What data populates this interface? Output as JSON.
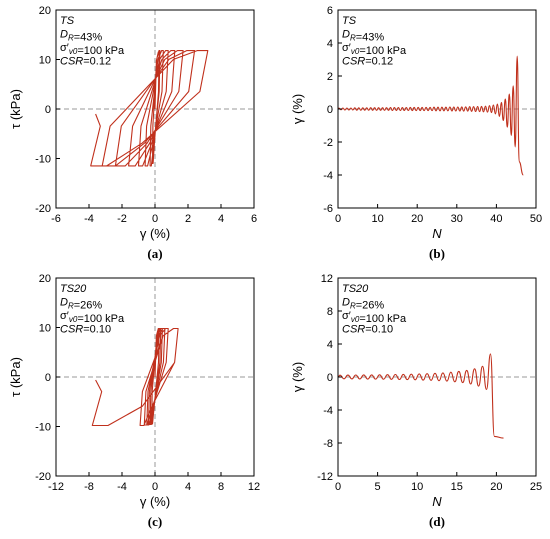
{
  "colors": {
    "series": "#c0301c",
    "reference": "#999999"
  },
  "chart_data": [
    {
      "id": "a",
      "type": "line",
      "panel_label": "(a)",
      "annotation": [
        "TS",
        "DR=43%",
        "σ'v0=100 kPa",
        "CSR=0.12"
      ],
      "xlabel": "γ (%)",
      "ylabel": "τ (kPa)",
      "xlim": [
        -6,
        6
      ],
      "ylim": [
        -20,
        20
      ],
      "xticks": [
        -6,
        -4,
        -2,
        0,
        2,
        4,
        6
      ],
      "yticks": [
        -20,
        -10,
        0,
        10,
        20
      ],
      "reference_lines": {
        "x": 0,
        "y": 0
      },
      "grid": false,
      "loops": [
        {
          "min": -0.15,
          "max": 0.25,
          "tmin": -11,
          "tmax": 11.5
        },
        {
          "min": -0.3,
          "max": 0.3,
          "tmin": -11.5,
          "tmax": 11.8
        },
        {
          "min": -0.6,
          "max": 0.5,
          "tmin": -11.5,
          "tmax": 11.8
        },
        {
          "min": -1.0,
          "max": 0.8,
          "tmin": -11.5,
          "tmax": 11.8
        },
        {
          "min": -1.6,
          "max": 1.2,
          "tmin": -11.5,
          "tmax": 11.8
        },
        {
          "min": -2.4,
          "max": 1.7,
          "tmin": -11.5,
          "tmax": 11.8
        },
        {
          "min": -3.2,
          "max": 2.4,
          "tmin": -11.5,
          "tmax": 11.8
        },
        {
          "min": -3.9,
          "max": 3.2,
          "tmin": -11.5,
          "tmax": 11.8
        }
      ],
      "end_point": [
        -3.6,
        -1.0
      ]
    },
    {
      "id": "b",
      "type": "line",
      "panel_label": "(b)",
      "annotation": [
        "TS",
        "DR=43%",
        "σ'v0=100 kPa",
        "CSR=0.12"
      ],
      "xlabel": "N",
      "ylabel": "γ (%)",
      "xlim": [
        0,
        50
      ],
      "ylim": [
        -6,
        6
      ],
      "xticks": [
        0,
        10,
        20,
        30,
        40,
        50
      ],
      "yticks": [
        -6,
        -4,
        -2,
        0,
        2,
        4,
        6
      ],
      "reference_lines": {
        "y": 0
      },
      "grid": false,
      "cycles": [
        {
          "n": 1,
          "max": 0.05,
          "min": -0.05
        },
        {
          "n": 2,
          "max": 0.06,
          "min": -0.06
        },
        {
          "n": 3,
          "max": 0.06,
          "min": -0.06
        },
        {
          "n": 4,
          "max": 0.06,
          "min": -0.06
        },
        {
          "n": 5,
          "max": 0.07,
          "min": -0.07
        },
        {
          "n": 6,
          "max": 0.07,
          "min": -0.07
        },
        {
          "n": 7,
          "max": 0.07,
          "min": -0.07
        },
        {
          "n": 8,
          "max": 0.07,
          "min": -0.07
        },
        {
          "n": 9,
          "max": 0.08,
          "min": -0.08
        },
        {
          "n": 10,
          "max": 0.08,
          "min": -0.08
        },
        {
          "n": 11,
          "max": 0.08,
          "min": -0.08
        },
        {
          "n": 12,
          "max": 0.08,
          "min": -0.08
        },
        {
          "n": 13,
          "max": 0.08,
          "min": -0.08
        },
        {
          "n": 14,
          "max": 0.09,
          "min": -0.09
        },
        {
          "n": 15,
          "max": 0.09,
          "min": -0.09
        },
        {
          "n": 16,
          "max": 0.09,
          "min": -0.09
        },
        {
          "n": 17,
          "max": 0.09,
          "min": -0.09
        },
        {
          "n": 18,
          "max": 0.09,
          "min": -0.09
        },
        {
          "n": 19,
          "max": 0.1,
          "min": -0.1
        },
        {
          "n": 20,
          "max": 0.1,
          "min": -0.1
        },
        {
          "n": 21,
          "max": 0.1,
          "min": -0.1
        },
        {
          "n": 22,
          "max": 0.1,
          "min": -0.1
        },
        {
          "n": 23,
          "max": 0.1,
          "min": -0.1
        },
        {
          "n": 24,
          "max": 0.1,
          "min": -0.1
        },
        {
          "n": 25,
          "max": 0.11,
          "min": -0.11
        },
        {
          "n": 26,
          "max": 0.11,
          "min": -0.11
        },
        {
          "n": 27,
          "max": 0.11,
          "min": -0.11
        },
        {
          "n": 28,
          "max": 0.11,
          "min": -0.11
        },
        {
          "n": 29,
          "max": 0.12,
          "min": -0.12
        },
        {
          "n": 30,
          "max": 0.12,
          "min": -0.12
        },
        {
          "n": 31,
          "max": 0.12,
          "min": -0.12
        },
        {
          "n": 32,
          "max": 0.13,
          "min": -0.13
        },
        {
          "n": 33,
          "max": 0.13,
          "min": -0.13
        },
        {
          "n": 34,
          "max": 0.14,
          "min": -0.14
        },
        {
          "n": 35,
          "max": 0.14,
          "min": -0.15
        },
        {
          "n": 36,
          "max": 0.15,
          "min": -0.16
        },
        {
          "n": 37,
          "max": 0.16,
          "min": -0.17
        },
        {
          "n": 38,
          "max": 0.17,
          "min": -0.19
        },
        {
          "n": 39,
          "max": 0.2,
          "min": -0.22
        },
        {
          "n": 40,
          "max": 0.24,
          "min": -0.3
        },
        {
          "n": 41,
          "max": 0.3,
          "min": -0.45
        },
        {
          "n": 42,
          "max": 0.4,
          "min": -0.7
        },
        {
          "n": 43,
          "max": 0.6,
          "min": -1.1
        },
        {
          "n": 44,
          "max": 0.9,
          "min": -1.6
        },
        {
          "n": 45,
          "max": 1.4,
          "min": -2.3
        },
        {
          "n": 46,
          "max": 3.2,
          "min": -3.2
        }
      ],
      "end_point": [
        46.8,
        -4.0
      ]
    },
    {
      "id": "c",
      "type": "line",
      "panel_label": "(c)",
      "annotation": [
        "TS20",
        "DR=26%",
        "σ'v0=100 kPa",
        "CSR=0.10"
      ],
      "xlabel": "γ (%)",
      "ylabel": "τ (kPa)",
      "xlim": [
        -12,
        12
      ],
      "ylim": [
        -20,
        20
      ],
      "xticks": [
        -12,
        -8,
        -4,
        0,
        4,
        8,
        12
      ],
      "yticks": [
        -20,
        -10,
        0,
        10,
        20
      ],
      "reference_lines": {
        "x": 0,
        "y": 0
      },
      "grid": false,
      "loops": [
        {
          "min": -0.4,
          "max": 0.5,
          "tmin": -9.5,
          "tmax": 9.8
        },
        {
          "min": -0.6,
          "max": 0.7,
          "tmin": -9.6,
          "tmax": 9.8
        },
        {
          "min": -0.8,
          "max": 0.9,
          "tmin": -9.6,
          "tmax": 9.8
        },
        {
          "min": -1.0,
          "max": 1.2,
          "tmin": -9.7,
          "tmax": 9.8
        },
        {
          "min": -1.3,
          "max": 1.6,
          "tmin": -9.7,
          "tmax": 9.8
        },
        {
          "min": -1.8,
          "max": 2.8,
          "tmin": -9.8,
          "tmax": 9.8
        },
        {
          "min": -7.6,
          "max": 2.8,
          "tmin": -9.8,
          "tmax": 9.8
        }
      ],
      "end_point": [
        -7.2,
        -0.6
      ]
    },
    {
      "id": "d",
      "type": "line",
      "panel_label": "(d)",
      "annotation": [
        "TS20",
        "DR=26%",
        "σ'v0=100 kPa",
        "CSR=0.10"
      ],
      "xlabel": "N",
      "ylabel": "γ (%)",
      "xlim": [
        0,
        25
      ],
      "ylim": [
        -12,
        12
      ],
      "xticks": [
        0,
        5,
        10,
        15,
        20,
        25
      ],
      "yticks": [
        -12,
        -8,
        -4,
        0,
        4,
        8,
        12
      ],
      "reference_lines": {
        "y": 0
      },
      "grid": false,
      "cycles": [
        {
          "n": 1,
          "max": 0.22,
          "min": -0.22
        },
        {
          "n": 2,
          "max": 0.23,
          "min": -0.23
        },
        {
          "n": 3,
          "max": 0.24,
          "min": -0.24
        },
        {
          "n": 4,
          "max": 0.25,
          "min": -0.25
        },
        {
          "n": 5,
          "max": 0.26,
          "min": -0.26
        },
        {
          "n": 6,
          "max": 0.27,
          "min": -0.27
        },
        {
          "n": 7,
          "max": 0.28,
          "min": -0.28
        },
        {
          "n": 8,
          "max": 0.3,
          "min": -0.3
        },
        {
          "n": 9,
          "max": 0.32,
          "min": -0.32
        },
        {
          "n": 10,
          "max": 0.34,
          "min": -0.34
        },
        {
          "n": 11,
          "max": 0.37,
          "min": -0.37
        },
        {
          "n": 12,
          "max": 0.4,
          "min": -0.4
        },
        {
          "n": 13,
          "max": 0.45,
          "min": -0.45
        },
        {
          "n": 14,
          "max": 0.5,
          "min": -0.5
        },
        {
          "n": 15,
          "max": 0.58,
          "min": -0.58
        },
        {
          "n": 16,
          "max": 0.68,
          "min": -0.68
        },
        {
          "n": 17,
          "max": 0.8,
          "min": -0.85
        },
        {
          "n": 18,
          "max": 1.0,
          "min": -1.1
        },
        {
          "n": 19,
          "max": 1.3,
          "min": -1.5
        },
        {
          "n": 20,
          "max": 2.8,
          "min": -7.2
        }
      ],
      "end_point": [
        20.9,
        -7.4
      ]
    }
  ]
}
